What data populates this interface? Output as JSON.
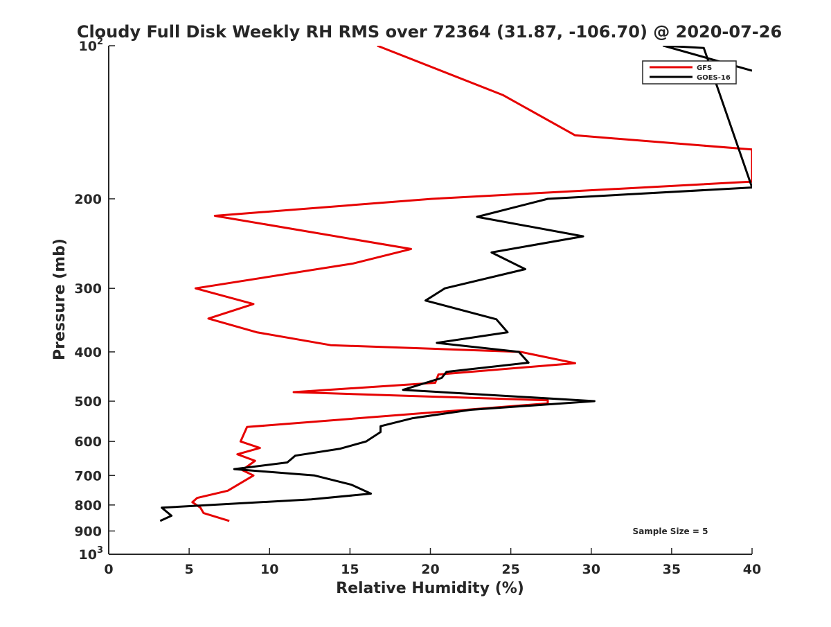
{
  "chart_data": {
    "type": "line",
    "title": "Cloudy Full Disk Weekly RH RMS over 72364 (31.87, -106.70) @ 2020-07-26",
    "xlabel": "Relative Humidity (%)",
    "ylabel": "Pressure (mb)",
    "xlim": [
      0,
      40
    ],
    "ylim": [
      100,
      1000
    ],
    "yscale": "log",
    "y_reversed": true,
    "xticks": [
      "0",
      "5",
      "10",
      "15",
      "20",
      "25",
      "30",
      "35",
      "40"
    ],
    "yticks": [
      {
        "value": 100,
        "base": "10",
        "exp": "2"
      },
      {
        "value": 200,
        "label": "200"
      },
      {
        "value": 300,
        "label": "300"
      },
      {
        "value": 400,
        "label": "400"
      },
      {
        "value": 500,
        "label": "500"
      },
      {
        "value": 600,
        "label": "600"
      },
      {
        "value": 700,
        "label": "700"
      },
      {
        "value": 800,
        "label": "800"
      },
      {
        "value": 900,
        "label": "900"
      },
      {
        "value": 1000,
        "base": "10",
        "exp": "3"
      }
    ],
    "grid": false,
    "legend_position": "top-right",
    "annotation": "Sample Size = 5",
    "series": [
      {
        "name": "GFS",
        "color": "#e60000",
        "points": [
          [
            16.7,
            100
          ],
          [
            24.5,
            125
          ],
          [
            29.0,
            150
          ],
          [
            40.0,
            160
          ],
          [
            40.0,
            185
          ],
          [
            20.1,
            200
          ],
          [
            6.6,
            216
          ],
          [
            18.8,
            251
          ],
          [
            15.2,
            268
          ],
          [
            5.4,
            300
          ],
          [
            9.0,
            322
          ],
          [
            6.2,
            344
          ],
          [
            9.2,
            366
          ],
          [
            13.8,
            388
          ],
          [
            25.6,
            400
          ],
          [
            29.0,
            421
          ],
          [
            20.5,
            443
          ],
          [
            20.3,
            460
          ],
          [
            11.5,
            480
          ],
          [
            27.3,
            498
          ],
          [
            27.3,
            505
          ],
          [
            8.6,
            562
          ],
          [
            8.2,
            600
          ],
          [
            9.4,
            618
          ],
          [
            8.0,
            636
          ],
          [
            9.1,
            655
          ],
          [
            8.3,
            683
          ],
          [
            9.0,
            700
          ],
          [
            7.4,
            750
          ],
          [
            5.5,
            775
          ],
          [
            5.2,
            790
          ],
          [
            5.7,
            810
          ],
          [
            5.9,
            830
          ],
          [
            7.5,
            860
          ]
        ]
      },
      {
        "name": "GOES-16",
        "color": "#000000",
        "points": [
          [
            40.0,
            112
          ],
          [
            34.5,
            100
          ],
          [
            37.0,
            101
          ],
          [
            40.0,
            190
          ],
          [
            27.3,
            200
          ],
          [
            22.9,
            217
          ],
          [
            29.5,
            237
          ],
          [
            23.8,
            255
          ],
          [
            25.9,
            275
          ],
          [
            20.9,
            300
          ],
          [
            19.7,
            317
          ],
          [
            24.1,
            345
          ],
          [
            24.8,
            366
          ],
          [
            20.4,
            384
          ],
          [
            25.5,
            400
          ],
          [
            26.1,
            420
          ],
          [
            21.0,
            438
          ],
          [
            20.7,
            450
          ],
          [
            18.3,
            475
          ],
          [
            30.2,
            500
          ],
          [
            22.5,
            520
          ],
          [
            18.9,
            540
          ],
          [
            16.9,
            560
          ],
          [
            16.9,
            575
          ],
          [
            16.0,
            600
          ],
          [
            14.4,
            620
          ],
          [
            11.6,
            640
          ],
          [
            11.1,
            660
          ],
          [
            7.8,
            680
          ],
          [
            12.8,
            700
          ],
          [
            15.1,
            730
          ],
          [
            16.3,
            760
          ],
          [
            12.6,
            780
          ],
          [
            3.3,
            810
          ],
          [
            3.9,
            840
          ],
          [
            3.2,
            860
          ]
        ]
      }
    ]
  }
}
